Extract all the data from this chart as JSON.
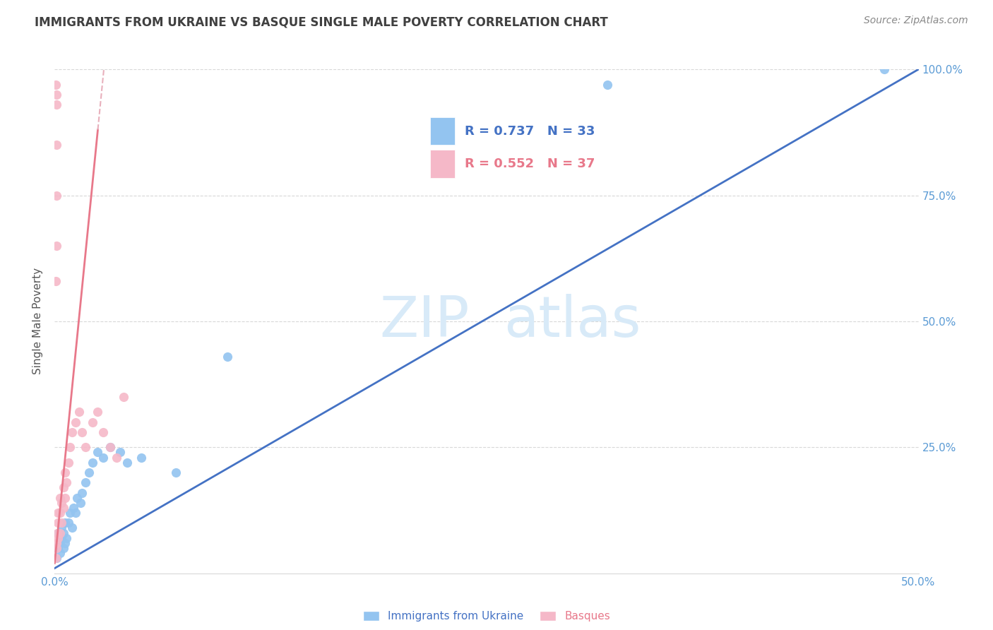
{
  "title": "IMMIGRANTS FROM UKRAINE VS BASQUE SINGLE MALE POVERTY CORRELATION CHART",
  "source": "Source: ZipAtlas.com",
  "ylabel": "Single Male Poverty",
  "watermark_zip": "ZIP",
  "watermark_atlas": "atlas",
  "legend_blue_r": "R = 0.737",
  "legend_blue_n": "N = 33",
  "legend_pink_r": "R = 0.552",
  "legend_pink_n": "N = 37",
  "series_blue_label": "Immigrants from Ukraine",
  "series_pink_label": "Basques",
  "xlim": [
    0.0,
    0.5
  ],
  "ylim": [
    0.0,
    1.0
  ],
  "blue_scatter_x": [
    0.001,
    0.002,
    0.002,
    0.003,
    0.003,
    0.004,
    0.004,
    0.005,
    0.005,
    0.006,
    0.006,
    0.007,
    0.008,
    0.009,
    0.01,
    0.011,
    0.012,
    0.013,
    0.015,
    0.016,
    0.018,
    0.02,
    0.022,
    0.025,
    0.028,
    0.032,
    0.038,
    0.042,
    0.05,
    0.07,
    0.1,
    0.48,
    0.32
  ],
  "blue_scatter_y": [
    0.03,
    0.05,
    0.08,
    0.04,
    0.06,
    0.07,
    0.09,
    0.05,
    0.08,
    0.06,
    0.1,
    0.07,
    0.1,
    0.12,
    0.09,
    0.13,
    0.12,
    0.15,
    0.14,
    0.16,
    0.18,
    0.2,
    0.22,
    0.24,
    0.23,
    0.25,
    0.24,
    0.22,
    0.23,
    0.2,
    0.43,
    1.0,
    0.97
  ],
  "pink_scatter_x": [
    0.0005,
    0.001,
    0.001,
    0.0015,
    0.002,
    0.002,
    0.002,
    0.003,
    0.003,
    0.003,
    0.004,
    0.004,
    0.005,
    0.005,
    0.006,
    0.006,
    0.007,
    0.008,
    0.009,
    0.01,
    0.012,
    0.014,
    0.016,
    0.018,
    0.022,
    0.025,
    0.028,
    0.032,
    0.036,
    0.04,
    0.0005,
    0.001,
    0.001,
    0.001,
    0.001,
    0.001,
    0.0008
  ],
  "pink_scatter_y": [
    0.03,
    0.05,
    0.06,
    0.08,
    0.07,
    0.1,
    0.12,
    0.08,
    0.12,
    0.15,
    0.1,
    0.14,
    0.13,
    0.17,
    0.15,
    0.2,
    0.18,
    0.22,
    0.25,
    0.28,
    0.3,
    0.32,
    0.28,
    0.25,
    0.3,
    0.32,
    0.28,
    0.25,
    0.23,
    0.35,
    0.97,
    0.95,
    0.93,
    0.85,
    0.75,
    0.65,
    0.58
  ],
  "blue_color": "#93c4f0",
  "pink_color": "#f5b8c8",
  "blue_line_color": "#4472c4",
  "pink_line_color": "#e8788a",
  "pink_line_dash_color": "#e8b0bc",
  "axis_color": "#5b9bd5",
  "title_color": "#404040",
  "watermark_color": "#d8eaf8",
  "background_color": "#ffffff",
  "grid_color": "#d8d8d8",
  "source_color": "#888888"
}
